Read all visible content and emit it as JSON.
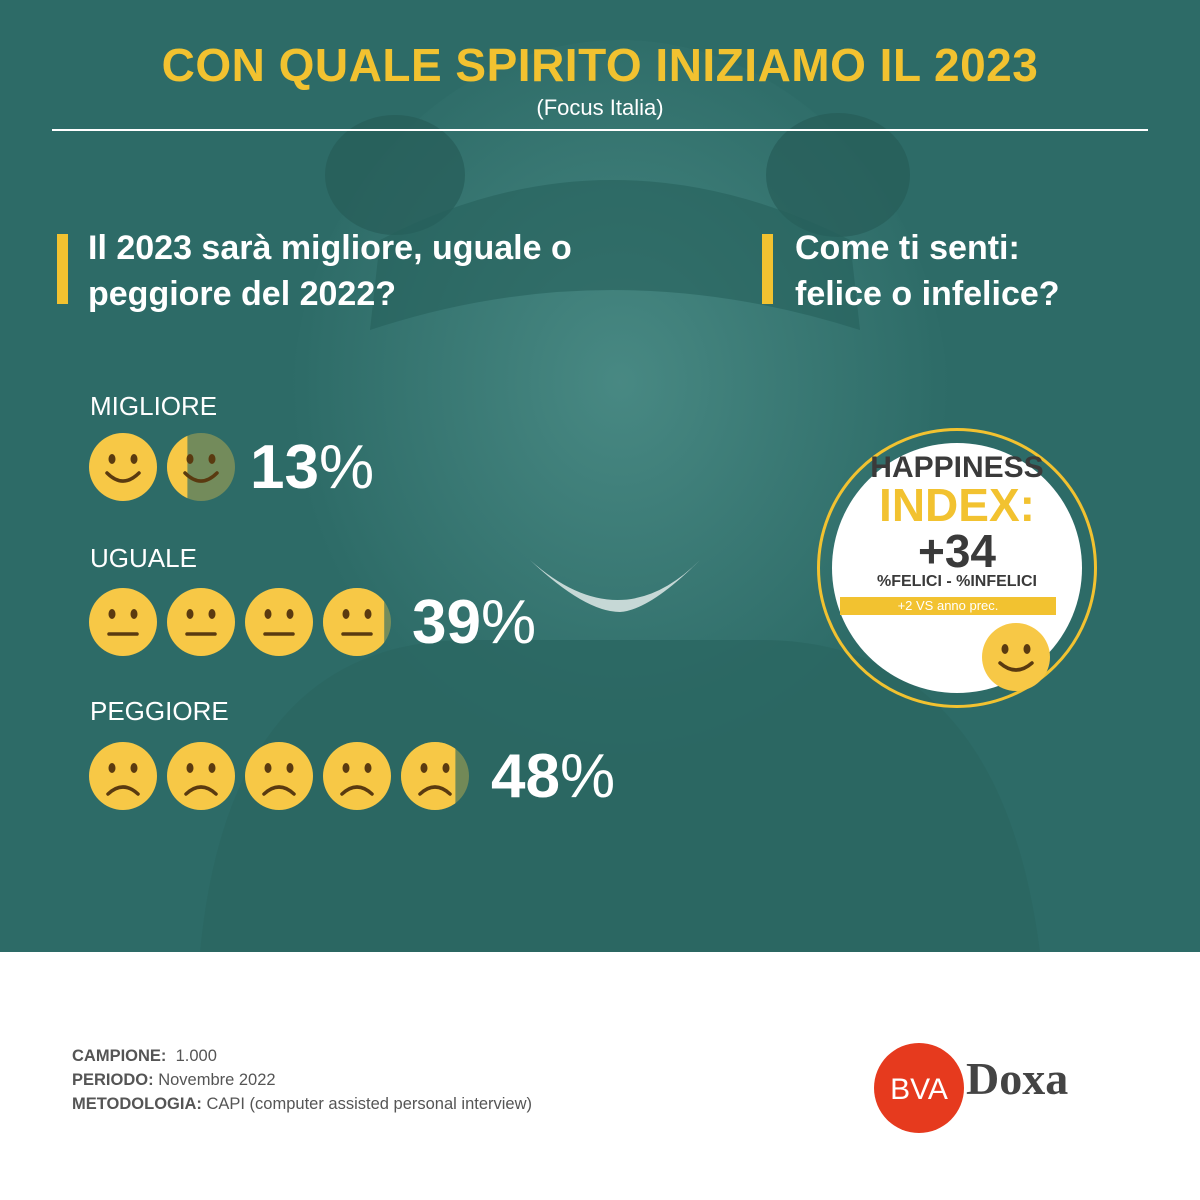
{
  "header": {
    "title": "CON QUALE SPIRITO INIZIAMO IL 2023",
    "subtitle": "(Focus Italia)"
  },
  "question_left": {
    "line1": "Il 2023 sarà migliore, uguale o",
    "line2": "peggiore del 2022?"
  },
  "question_right": {
    "line1": "Come ti senti:",
    "line2": "felice o infelice?"
  },
  "chart_data": {
    "type": "bar",
    "categories": [
      "MIGLIORE",
      "UGUALE",
      "PEGGIORE"
    ],
    "values": [
      13,
      39,
      48
    ],
    "value_labels": [
      "13",
      "39",
      "48"
    ],
    "unit": "%"
  },
  "happiness": {
    "line1": "HAPPINESS",
    "line2": "INDEX:",
    "value": "+34",
    "formula": "%FELICI - %INFELICI",
    "change": "+2 VS anno prec."
  },
  "methodology": {
    "sample_label": "CAMPIONE:",
    "sample_value": "1.000",
    "period_label": "PERIODO:",
    "period_value": "Novembre 2022",
    "method_label": "METODOLOGIA:",
    "method_value": "CAPI (computer assisted personal interview)"
  },
  "logo": {
    "bva": "BVA",
    "doxa": "Doxa"
  },
  "colors": {
    "teal": "#2d6b67",
    "yellow": "#f2c230",
    "emoji": "#f7c846",
    "bva_red": "#e63a1e"
  },
  "icons": {
    "happy": "smiley-happy-icon",
    "neutral": "smiley-neutral-icon",
    "sad": "smiley-sad-icon"
  }
}
